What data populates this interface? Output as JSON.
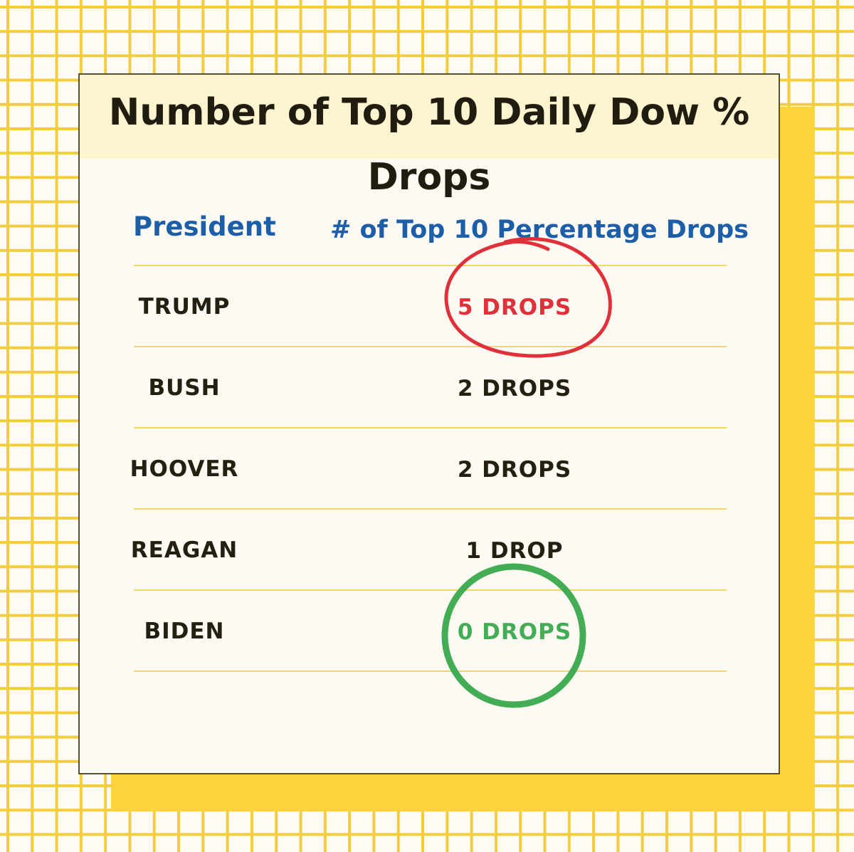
{
  "title": "Number of Top 10 Daily Dow % Drops",
  "table": {
    "headers": {
      "president": "President",
      "drops": "# of Top 10 Percentage Drops"
    },
    "rows": [
      {
        "president": "TRUMP",
        "drops": "5 DROPS",
        "highlight": "red"
      },
      {
        "president": "BUSH",
        "drops": "2 DROPS"
      },
      {
        "president": "HOOVER",
        "drops": "2 DROPS"
      },
      {
        "president": "REAGAN",
        "drops": "1 DROP"
      },
      {
        "president": "BIDEN",
        "drops": "0 DROPS",
        "highlight": "green"
      }
    ]
  },
  "colors": {
    "grid": "#f2cd3e",
    "header_text": "#1d5ea8",
    "red_circle": "#e0303a",
    "green_circle": "#43ad55"
  }
}
